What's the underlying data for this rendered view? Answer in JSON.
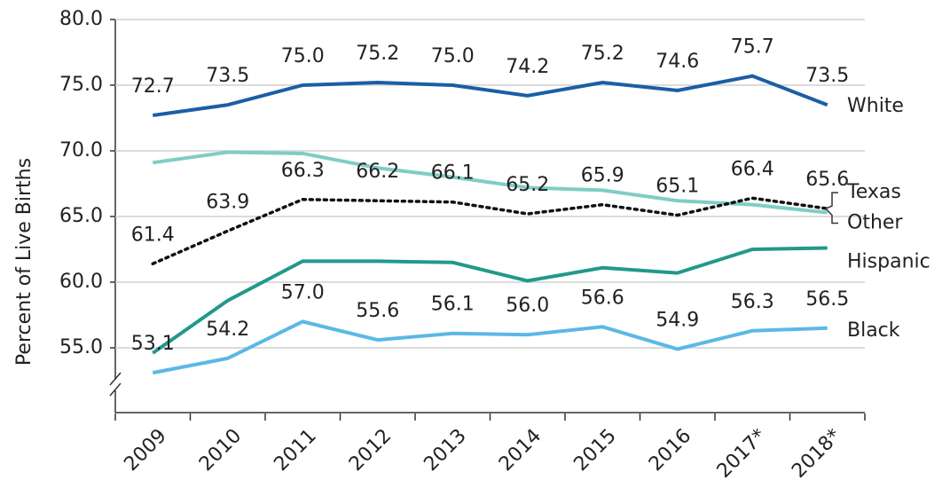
{
  "chart_data": {
    "type": "line",
    "y_label": "Percent of Live Births",
    "categories": [
      "2009",
      "2010",
      "2011",
      "2012",
      "2013",
      "2014",
      "2015",
      "2016",
      "2017*",
      "2018*"
    ],
    "ylim": [
      50,
      80
    ],
    "yticks": [
      {
        "value": 55,
        "label": "55.0"
      },
      {
        "value": 60,
        "label": "60.0"
      },
      {
        "value": 65,
        "label": "65.0"
      },
      {
        "value": 70,
        "label": "70.0"
      },
      {
        "value": 75,
        "label": "75.0"
      },
      {
        "value": 80,
        "label": "80.0"
      }
    ],
    "grid": true,
    "series": [
      {
        "name": "White",
        "color": "#1a5ea6",
        "style": "solid",
        "values": [
          72.7,
          73.5,
          75.0,
          75.2,
          75.0,
          74.2,
          75.2,
          74.6,
          75.7,
          73.5
        ],
        "value_labels": [
          "72.7",
          "73.5",
          "75.0",
          "75.2",
          "75.0",
          "74.2",
          "75.2",
          "74.6",
          "75.7",
          "73.5"
        ]
      },
      {
        "name": "Other",
        "color": "#7fcdc4",
        "style": "solid",
        "values": [
          69.1,
          69.9,
          69.8,
          68.7,
          68.0,
          67.2,
          67.0,
          66.2,
          65.9,
          65.3
        ]
      },
      {
        "name": "Texas",
        "color": "#111111",
        "style": "dotted",
        "values": [
          61.4,
          63.9,
          66.3,
          66.2,
          66.1,
          65.2,
          65.9,
          65.1,
          66.4,
          65.6
        ],
        "value_labels": [
          "61.4",
          "63.9",
          "66.3",
          "66.2",
          "66.1",
          "65.2",
          "65.9",
          "65.1",
          "66.4",
          "65.6"
        ]
      },
      {
        "name": "Hispanic",
        "color": "#22998a",
        "style": "solid",
        "values": [
          54.6,
          58.6,
          61.6,
          61.6,
          61.5,
          60.1,
          61.1,
          60.7,
          62.5,
          62.6
        ]
      },
      {
        "name": "Black",
        "color": "#5bb8e6",
        "style": "solid",
        "values": [
          53.1,
          54.2,
          57.0,
          55.6,
          56.1,
          56.0,
          56.6,
          54.9,
          56.3,
          56.5
        ],
        "value_labels": [
          "53.1",
          "54.2",
          "57.0",
          "55.6",
          "56.1",
          "56.0",
          "56.6",
          "54.9",
          "56.3",
          "56.5"
        ]
      }
    ]
  }
}
